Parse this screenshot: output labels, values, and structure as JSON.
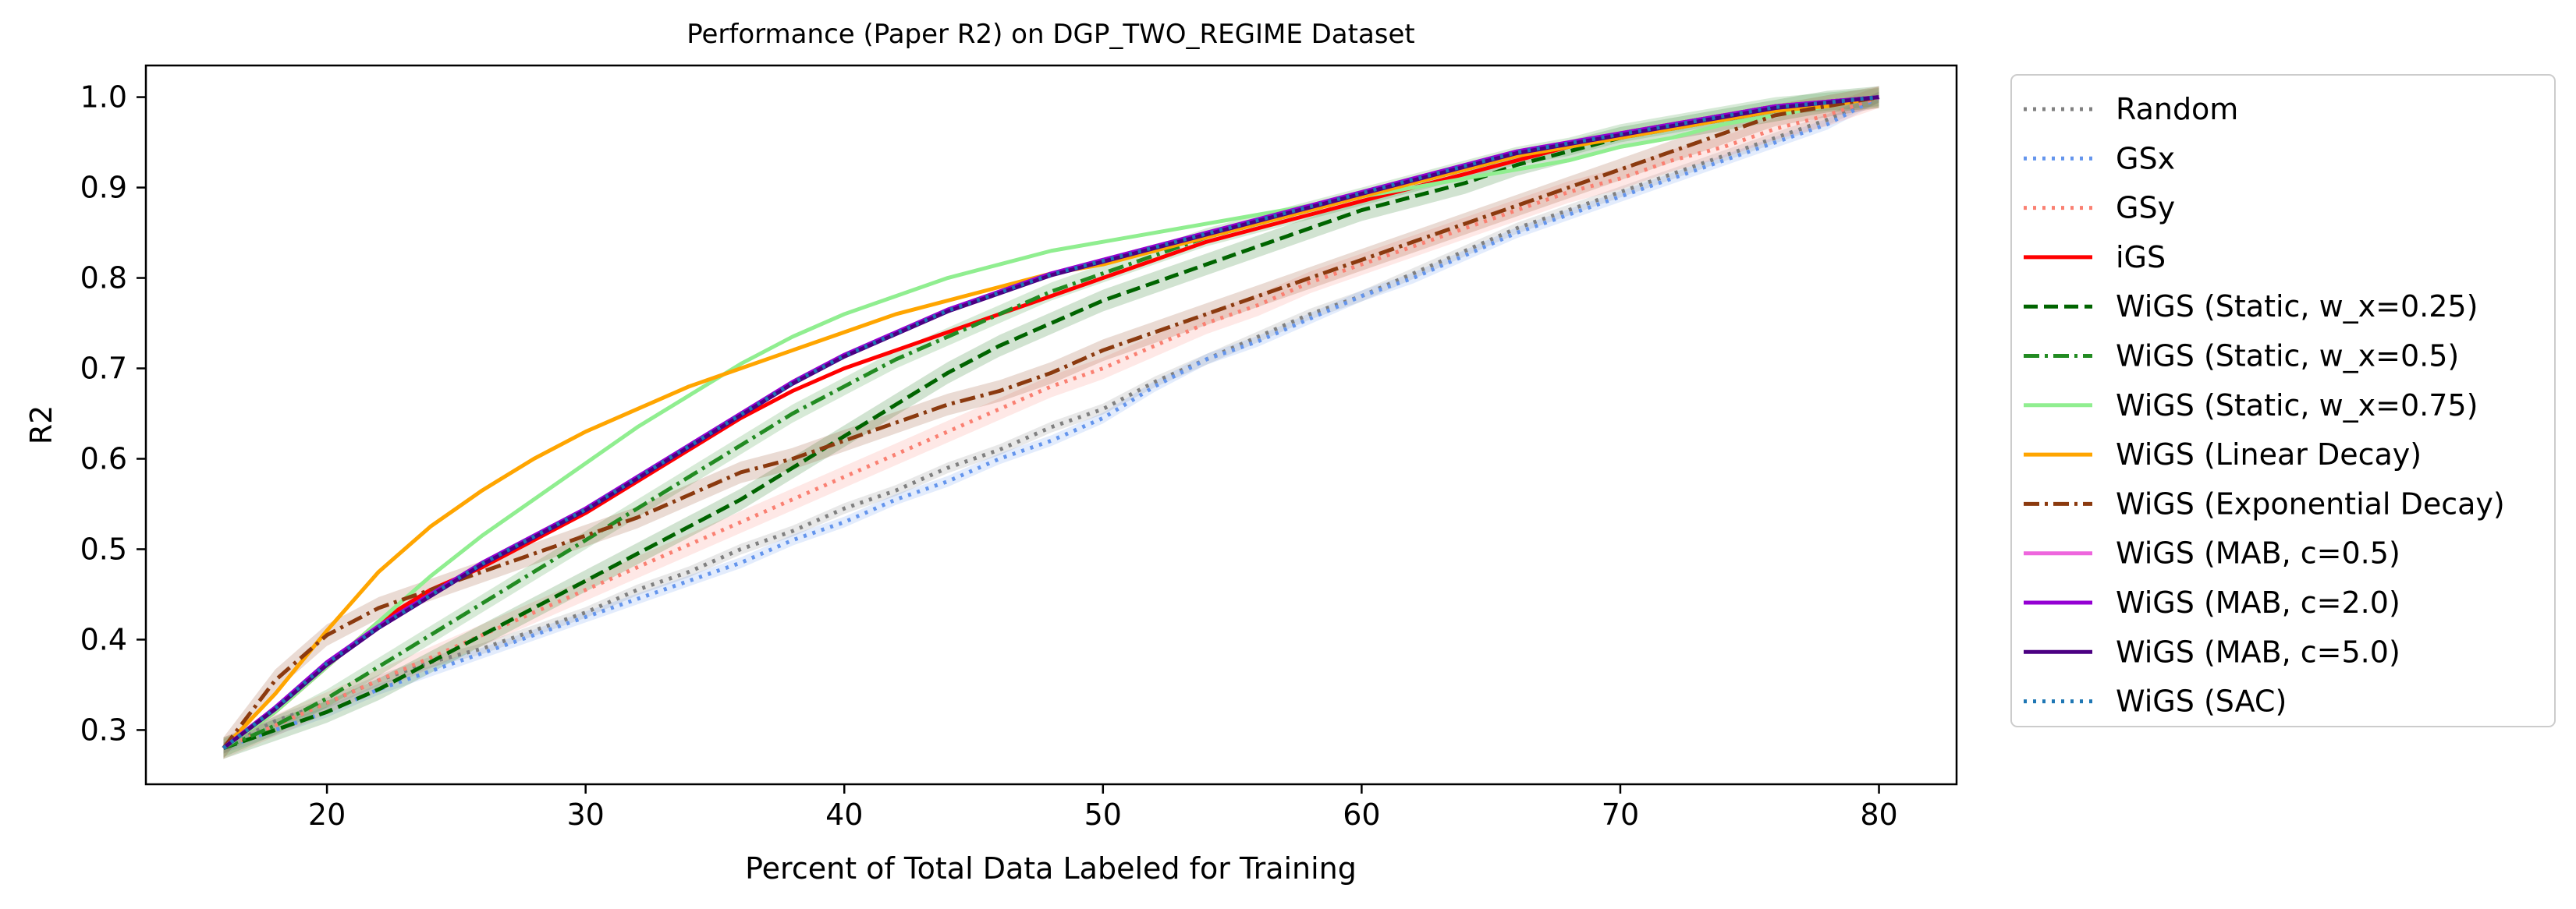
{
  "chart_data": {
    "type": "line",
    "title": "Performance (Paper R2) on DGP_TWO_REGIME Dataset",
    "xlabel": "Percent of Total Data Labeled for Training",
    "ylabel": "R2",
    "xlim": [
      13,
      83
    ],
    "ylim": [
      0.24,
      1.035
    ],
    "xticks": [
      20,
      30,
      40,
      50,
      60,
      70,
      80
    ],
    "yticks": [
      0.3,
      0.4,
      0.5,
      0.6,
      0.7,
      0.8,
      0.9,
      1.0
    ],
    "xtick_labels": [
      "20",
      "30",
      "40",
      "50",
      "60",
      "70",
      "80"
    ],
    "ytick_labels": [
      "0.3",
      "0.4",
      "0.5",
      "0.6",
      "0.7",
      "0.8",
      "0.9",
      "1.0"
    ],
    "grid": false,
    "legend_position": "outside right",
    "x": [
      16,
      18,
      20,
      22,
      24,
      26,
      28,
      30,
      32,
      34,
      36,
      38,
      40,
      42,
      44,
      46,
      48,
      50,
      52,
      54,
      56,
      58,
      60,
      62,
      64,
      66,
      68,
      70,
      72,
      74,
      76,
      78,
      80
    ],
    "series": [
      {
        "name": "Random",
        "color": "#808080",
        "dash": "dot",
        "values": [
          0.28,
          0.31,
          0.33,
          0.355,
          0.375,
          0.39,
          0.41,
          0.43,
          0.455,
          0.475,
          0.5,
          0.52,
          0.545,
          0.565,
          0.59,
          0.61,
          0.635,
          0.655,
          0.685,
          0.71,
          0.735,
          0.76,
          0.78,
          0.805,
          0.83,
          0.855,
          0.875,
          0.895,
          0.915,
          0.935,
          0.955,
          0.975,
          1.0
        ],
        "band": 0.006
      },
      {
        "name": "GSx",
        "color": "#6495ED",
        "dash": "dot",
        "values": [
          0.28,
          0.3,
          0.32,
          0.345,
          0.365,
          0.385,
          0.405,
          0.425,
          0.445,
          0.465,
          0.485,
          0.51,
          0.53,
          0.555,
          0.575,
          0.6,
          0.62,
          0.645,
          0.68,
          0.71,
          0.73,
          0.755,
          0.78,
          0.8,
          0.825,
          0.85,
          0.87,
          0.89,
          0.91,
          0.93,
          0.95,
          0.97,
          1.0
        ],
        "band": 0.006
      },
      {
        "name": "GSy",
        "color": "#FA8072",
        "dash": "dot",
        "values": [
          0.28,
          0.305,
          0.33,
          0.355,
          0.38,
          0.405,
          0.43,
          0.455,
          0.48,
          0.505,
          0.53,
          0.555,
          0.58,
          0.605,
          0.63,
          0.655,
          0.68,
          0.7,
          0.725,
          0.75,
          0.77,
          0.795,
          0.815,
          0.835,
          0.855,
          0.875,
          0.895,
          0.91,
          0.93,
          0.945,
          0.965,
          0.98,
          1.0
        ],
        "band": 0.012
      },
      {
        "name": "iGS",
        "color": "#FF0000",
        "dash": "solid",
        "values": [
          0.28,
          0.32,
          0.37,
          0.42,
          0.455,
          0.48,
          0.51,
          0.54,
          0.575,
          0.61,
          0.645,
          0.675,
          0.7,
          0.72,
          0.74,
          0.76,
          0.78,
          0.8,
          0.82,
          0.84,
          0.855,
          0.87,
          0.885,
          0.9,
          0.915,
          0.93,
          0.945,
          0.96,
          0.97,
          0.98,
          0.99,
          0.995,
          1.0
        ],
        "band": 0.0
      },
      {
        "name": "WiGS (Static, w_x=0.25)",
        "color": "#006400",
        "dash": "dash",
        "values": [
          0.28,
          0.3,
          0.32,
          0.345,
          0.375,
          0.405,
          0.435,
          0.465,
          0.495,
          0.525,
          0.555,
          0.59,
          0.625,
          0.66,
          0.695,
          0.725,
          0.75,
          0.775,
          0.795,
          0.815,
          0.835,
          0.855,
          0.875,
          0.89,
          0.905,
          0.925,
          0.94,
          0.955,
          0.965,
          0.975,
          0.985,
          0.995,
          1.0
        ],
        "band": 0.012
      },
      {
        "name": "WiGS (Static, w_x=0.5)",
        "color": "#228B22",
        "dash": "dashdot",
        "values": [
          0.28,
          0.305,
          0.335,
          0.37,
          0.405,
          0.44,
          0.475,
          0.51,
          0.545,
          0.58,
          0.615,
          0.65,
          0.68,
          0.71,
          0.735,
          0.76,
          0.785,
          0.805,
          0.825,
          0.845,
          0.86,
          0.875,
          0.89,
          0.905,
          0.92,
          0.935,
          0.945,
          0.96,
          0.97,
          0.98,
          0.99,
          0.995,
          1.0
        ],
        "band": 0.01
      },
      {
        "name": "WiGS (Static, w_x=0.75)",
        "color": "#90EE90",
        "dash": "solid",
        "values": [
          0.28,
          0.32,
          0.37,
          0.42,
          0.47,
          0.515,
          0.555,
          0.595,
          0.635,
          0.67,
          0.705,
          0.735,
          0.76,
          0.78,
          0.8,
          0.815,
          0.83,
          0.84,
          0.85,
          0.86,
          0.87,
          0.88,
          0.89,
          0.9,
          0.91,
          0.92,
          0.93,
          0.945,
          0.955,
          0.97,
          0.98,
          0.99,
          1.0
        ],
        "band": 0.0
      },
      {
        "name": "WiGS (Linear Decay)",
        "color": "#FFA500",
        "dash": "solid",
        "values": [
          0.28,
          0.34,
          0.41,
          0.475,
          0.525,
          0.565,
          0.6,
          0.63,
          0.655,
          0.68,
          0.7,
          0.72,
          0.74,
          0.76,
          0.775,
          0.79,
          0.805,
          0.815,
          0.83,
          0.845,
          0.86,
          0.875,
          0.89,
          0.905,
          0.92,
          0.935,
          0.945,
          0.955,
          0.965,
          0.975,
          0.985,
          0.99,
          1.0
        ],
        "band": 0.0
      },
      {
        "name": "WiGS (Exponential Decay)",
        "color": "#8B3A0F",
        "dash": "dashdot",
        "values": [
          0.28,
          0.355,
          0.405,
          0.435,
          0.455,
          0.475,
          0.495,
          0.515,
          0.535,
          0.56,
          0.585,
          0.6,
          0.62,
          0.64,
          0.66,
          0.675,
          0.695,
          0.72,
          0.74,
          0.76,
          0.78,
          0.8,
          0.82,
          0.84,
          0.86,
          0.88,
          0.9,
          0.92,
          0.94,
          0.96,
          0.98,
          0.99,
          1.0
        ],
        "band": 0.012
      },
      {
        "name": "WiGS (MAB, c=0.5)",
        "color": "#EE66DD",
        "dash": "solid",
        "values": [
          0.28,
          0.325,
          0.375,
          0.415,
          0.45,
          0.485,
          0.515,
          0.545,
          0.58,
          0.615,
          0.65,
          0.685,
          0.715,
          0.74,
          0.765,
          0.785,
          0.805,
          0.82,
          0.835,
          0.85,
          0.865,
          0.88,
          0.895,
          0.91,
          0.925,
          0.94,
          0.95,
          0.96,
          0.97,
          0.98,
          0.99,
          0.995,
          1.0
        ],
        "band": 0.0
      },
      {
        "name": "WiGS (MAB, c=2.0)",
        "color": "#9400D3",
        "dash": "solid",
        "values": [
          0.28,
          0.325,
          0.375,
          0.415,
          0.45,
          0.485,
          0.515,
          0.545,
          0.58,
          0.615,
          0.65,
          0.685,
          0.715,
          0.74,
          0.765,
          0.785,
          0.805,
          0.82,
          0.835,
          0.85,
          0.865,
          0.88,
          0.895,
          0.91,
          0.925,
          0.94,
          0.95,
          0.96,
          0.97,
          0.98,
          0.99,
          0.995,
          1.0
        ],
        "band": 0.0
      },
      {
        "name": "WiGS (MAB, c=5.0)",
        "color": "#4B0082",
        "dash": "solid",
        "values": [
          0.28,
          0.323,
          0.372,
          0.413,
          0.448,
          0.483,
          0.513,
          0.543,
          0.578,
          0.613,
          0.648,
          0.683,
          0.713,
          0.738,
          0.763,
          0.783,
          0.803,
          0.818,
          0.833,
          0.848,
          0.863,
          0.878,
          0.893,
          0.908,
          0.923,
          0.938,
          0.948,
          0.958,
          0.968,
          0.978,
          0.988,
          0.994,
          1.0
        ],
        "band": 0.0
      },
      {
        "name": "WiGS (SAC)",
        "color": "#1F77B4",
        "dash": "dot",
        "values": [
          0.28,
          0.324,
          0.374,
          0.414,
          0.449,
          0.484,
          0.514,
          0.544,
          0.579,
          0.614,
          0.649,
          0.684,
          0.714,
          0.739,
          0.764,
          0.784,
          0.804,
          0.819,
          0.834,
          0.849,
          0.864,
          0.879,
          0.894,
          0.909,
          0.924,
          0.939,
          0.949,
          0.959,
          0.969,
          0.979,
          0.989,
          0.994,
          1.0
        ],
        "band": 0.0
      }
    ]
  }
}
